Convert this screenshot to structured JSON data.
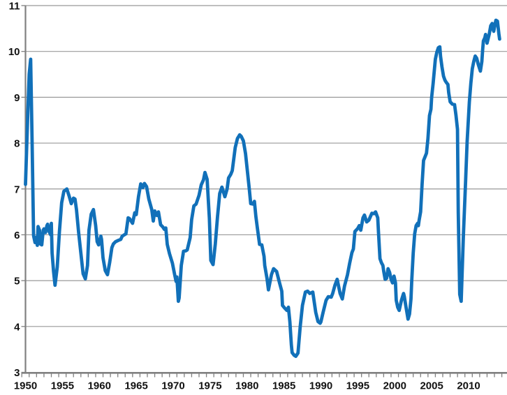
{
  "chart_data": {
    "type": "line",
    "title": "",
    "xlabel": "",
    "ylabel": "",
    "xlim": [
      1950,
      2015.2
    ],
    "ylim": [
      3,
      11
    ],
    "grid": "horizontal",
    "legend": "none",
    "colors": {
      "line": "#1170B9",
      "gridline": "#999999",
      "axis": "#808080",
      "tick": "#808080",
      "label": "#111111",
      "background": "#ffffff"
    },
    "line_width": 4.8,
    "y_ticks": [
      3,
      4,
      5,
      6,
      7,
      8,
      9,
      10,
      11
    ],
    "y_tick_labels": [
      "3",
      "4",
      "5",
      "6",
      "7",
      "8",
      "9",
      "10",
      "11"
    ],
    "x_tick_labels": [
      "1950",
      "1955",
      "1960",
      "1965",
      "1970",
      "1975",
      "1980",
      "1985",
      "1990",
      "1995",
      "2000",
      "2005",
      "2010"
    ],
    "x_minor_ticks": {
      "start": 1949.5,
      "step": 1,
      "end": 2015.5
    },
    "series": [
      {
        "name": "series-1",
        "color": "#1170B9",
        "points": [
          [
            1950.0,
            7.1
          ],
          [
            1950.3,
            8.6
          ],
          [
            1950.5,
            9.5
          ],
          [
            1950.7,
            9.83
          ],
          [
            1950.9,
            8.0
          ],
          [
            1951.1,
            5.98
          ],
          [
            1951.3,
            5.83
          ],
          [
            1951.5,
            5.95
          ],
          [
            1951.6,
            5.77
          ],
          [
            1951.7,
            6.18
          ],
          [
            1951.9,
            6.1
          ],
          [
            1952.0,
            5.8
          ],
          [
            1952.2,
            5.78
          ],
          [
            1952.4,
            6.1
          ],
          [
            1952.5,
            6.13
          ],
          [
            1952.7,
            6.05
          ],
          [
            1952.9,
            6.2
          ],
          [
            1953.0,
            6.23
          ],
          [
            1953.2,
            6.07
          ],
          [
            1953.4,
            6.0
          ],
          [
            1953.5,
            6.25
          ],
          [
            1953.6,
            5.6
          ],
          [
            1953.8,
            5.2
          ],
          [
            1954.0,
            4.9
          ],
          [
            1954.3,
            5.3
          ],
          [
            1954.6,
            6.07
          ],
          [
            1954.9,
            6.7
          ],
          [
            1955.2,
            6.95
          ],
          [
            1955.6,
            7.0
          ],
          [
            1955.9,
            6.85
          ],
          [
            1956.2,
            6.68
          ],
          [
            1956.5,
            6.8
          ],
          [
            1956.7,
            6.78
          ],
          [
            1956.9,
            6.55
          ],
          [
            1957.2,
            6.05
          ],
          [
            1957.5,
            5.6
          ],
          [
            1957.8,
            5.15
          ],
          [
            1958.1,
            5.04
          ],
          [
            1958.4,
            5.33
          ],
          [
            1958.6,
            6.1
          ],
          [
            1958.9,
            6.45
          ],
          [
            1959.2,
            6.55
          ],
          [
            1959.5,
            6.2
          ],
          [
            1959.7,
            5.85
          ],
          [
            1959.9,
            5.78
          ],
          [
            1960.2,
            5.97
          ],
          [
            1960.3,
            5.9
          ],
          [
            1960.5,
            5.5
          ],
          [
            1960.8,
            5.22
          ],
          [
            1961.1,
            5.13
          ],
          [
            1961.4,
            5.4
          ],
          [
            1961.7,
            5.72
          ],
          [
            1961.9,
            5.8
          ],
          [
            1962.2,
            5.85
          ],
          [
            1962.6,
            5.88
          ],
          [
            1962.9,
            5.9
          ],
          [
            1963.1,
            5.97
          ],
          [
            1963.4,
            6.0
          ],
          [
            1963.6,
            6.02
          ],
          [
            1963.9,
            6.37
          ],
          [
            1964.1,
            6.35
          ],
          [
            1964.5,
            6.25
          ],
          [
            1964.8,
            6.48
          ],
          [
            1965.0,
            6.44
          ],
          [
            1965.3,
            6.83
          ],
          [
            1965.6,
            7.11
          ],
          [
            1965.9,
            7.03
          ],
          [
            1966.1,
            7.12
          ],
          [
            1966.4,
            7.05
          ],
          [
            1966.7,
            6.78
          ],
          [
            1967.1,
            6.55
          ],
          [
            1967.3,
            6.3
          ],
          [
            1967.5,
            6.52
          ],
          [
            1967.8,
            6.42
          ],
          [
            1968.0,
            6.5
          ],
          [
            1968.3,
            6.22
          ],
          [
            1968.6,
            6.17
          ],
          [
            1968.8,
            6.12
          ],
          [
            1969.0,
            6.15
          ],
          [
            1969.2,
            5.79
          ],
          [
            1969.5,
            5.59
          ],
          [
            1969.9,
            5.38
          ],
          [
            1970.2,
            5.13
          ],
          [
            1970.4,
            4.98
          ],
          [
            1970.5,
            5.08
          ],
          [
            1970.7,
            4.55
          ],
          [
            1970.8,
            4.62
          ],
          [
            1971.1,
            5.33
          ],
          [
            1971.4,
            5.64
          ],
          [
            1971.7,
            5.65
          ],
          [
            1971.9,
            5.67
          ],
          [
            1972.3,
            5.94
          ],
          [
            1972.5,
            6.33
          ],
          [
            1972.8,
            6.63
          ],
          [
            1973.1,
            6.67
          ],
          [
            1973.5,
            6.86
          ],
          [
            1973.8,
            7.09
          ],
          [
            1974.1,
            7.2
          ],
          [
            1974.3,
            7.36
          ],
          [
            1974.6,
            7.21
          ],
          [
            1974.9,
            6.36
          ],
          [
            1975.1,
            5.44
          ],
          [
            1975.4,
            5.35
          ],
          [
            1975.7,
            5.8
          ],
          [
            1976.0,
            6.4
          ],
          [
            1976.3,
            6.9
          ],
          [
            1976.6,
            7.04
          ],
          [
            1976.9,
            6.88
          ],
          [
            1977.0,
            6.83
          ],
          [
            1977.3,
            7.0
          ],
          [
            1977.5,
            7.24
          ],
          [
            1977.8,
            7.32
          ],
          [
            1978.0,
            7.4
          ],
          [
            1978.2,
            7.65
          ],
          [
            1978.4,
            7.9
          ],
          [
            1978.7,
            8.1
          ],
          [
            1979.0,
            8.18
          ],
          [
            1979.2,
            8.15
          ],
          [
            1979.5,
            8.05
          ],
          [
            1979.8,
            7.77
          ],
          [
            1980.1,
            7.31
          ],
          [
            1980.3,
            7.01
          ],
          [
            1980.5,
            6.68
          ],
          [
            1980.8,
            6.67
          ],
          [
            1981.0,
            6.73
          ],
          [
            1981.2,
            6.4
          ],
          [
            1981.4,
            6.14
          ],
          [
            1981.7,
            5.79
          ],
          [
            1982.0,
            5.78
          ],
          [
            1982.3,
            5.53
          ],
          [
            1982.4,
            5.33
          ],
          [
            1982.7,
            5.05
          ],
          [
            1982.9,
            4.8
          ],
          [
            1983.3,
            5.13
          ],
          [
            1983.6,
            5.26
          ],
          [
            1984.0,
            5.2
          ],
          [
            1984.4,
            4.95
          ],
          [
            1984.7,
            4.77
          ],
          [
            1984.8,
            4.46
          ],
          [
            1985.1,
            4.4
          ],
          [
            1985.4,
            4.35
          ],
          [
            1985.6,
            4.42
          ],
          [
            1985.8,
            4.1
          ],
          [
            1986.0,
            3.6
          ],
          [
            1986.1,
            3.43
          ],
          [
            1986.4,
            3.37
          ],
          [
            1986.6,
            3.35
          ],
          [
            1986.9,
            3.42
          ],
          [
            1987.2,
            4.0
          ],
          [
            1987.5,
            4.46
          ],
          [
            1987.9,
            4.75
          ],
          [
            1988.2,
            4.77
          ],
          [
            1988.5,
            4.72
          ],
          [
            1988.9,
            4.75
          ],
          [
            1989.3,
            4.31
          ],
          [
            1989.6,
            4.11
          ],
          [
            1989.9,
            4.07
          ],
          [
            1990.0,
            4.1
          ],
          [
            1990.3,
            4.31
          ],
          [
            1990.7,
            4.57
          ],
          [
            1991.0,
            4.65
          ],
          [
            1991.4,
            4.64
          ],
          [
            1991.6,
            4.72
          ],
          [
            1991.9,
            4.9
          ],
          [
            1992.2,
            5.03
          ],
          [
            1992.6,
            4.72
          ],
          [
            1992.9,
            4.6
          ],
          [
            1993.2,
            4.88
          ],
          [
            1993.6,
            5.13
          ],
          [
            1993.9,
            5.38
          ],
          [
            1994.2,
            5.61
          ],
          [
            1994.4,
            5.69
          ],
          [
            1994.6,
            6.07
          ],
          [
            1995.0,
            6.14
          ],
          [
            1995.2,
            6.2
          ],
          [
            1995.4,
            6.1
          ],
          [
            1995.7,
            6.37
          ],
          [
            1995.9,
            6.43
          ],
          [
            1996.2,
            6.28
          ],
          [
            1996.5,
            6.32
          ],
          [
            1996.9,
            6.47
          ],
          [
            1997.2,
            6.46
          ],
          [
            1997.4,
            6.5
          ],
          [
            1997.7,
            6.37
          ],
          [
            1997.8,
            6.05
          ],
          [
            1998.0,
            5.48
          ],
          [
            1998.2,
            5.39
          ],
          [
            1998.4,
            5.33
          ],
          [
            1998.5,
            5.21
          ],
          [
            1998.7,
            5.03
          ],
          [
            1998.9,
            5.05
          ],
          [
            1999.1,
            5.26
          ],
          [
            1999.3,
            5.18
          ],
          [
            1999.5,
            5.03
          ],
          [
            1999.7,
            4.95
          ],
          [
            1999.9,
            5.1
          ],
          [
            2000.1,
            4.95
          ],
          [
            2000.2,
            4.57
          ],
          [
            2000.4,
            4.42
          ],
          [
            2000.6,
            4.35
          ],
          [
            2000.9,
            4.57
          ],
          [
            2001.2,
            4.72
          ],
          [
            2001.3,
            4.65
          ],
          [
            2001.5,
            4.45
          ],
          [
            2001.8,
            4.16
          ],
          [
            2002.0,
            4.27
          ],
          [
            2002.2,
            4.6
          ],
          [
            2002.3,
            5.0
          ],
          [
            2002.5,
            5.6
          ],
          [
            2002.7,
            6.02
          ],
          [
            2002.9,
            6.2
          ],
          [
            2003.1,
            6.25
          ],
          [
            2003.2,
            6.2
          ],
          [
            2003.3,
            6.32
          ],
          [
            2003.5,
            6.5
          ],
          [
            2003.7,
            7.1
          ],
          [
            2003.9,
            7.62
          ],
          [
            2004.1,
            7.7
          ],
          [
            2004.3,
            7.78
          ],
          [
            2004.5,
            8.1
          ],
          [
            2004.7,
            8.6
          ],
          [
            2004.9,
            8.74
          ],
          [
            2005.0,
            9.0
          ],
          [
            2005.2,
            9.3
          ],
          [
            2005.5,
            9.83
          ],
          [
            2005.7,
            9.98
          ],
          [
            2005.9,
            10.08
          ],
          [
            2006.1,
            10.1
          ],
          [
            2006.2,
            9.9
          ],
          [
            2006.4,
            9.66
          ],
          [
            2006.6,
            9.46
          ],
          [
            2006.8,
            9.37
          ],
          [
            2007.0,
            9.32
          ],
          [
            2007.2,
            9.28
          ],
          [
            2007.3,
            9.1
          ],
          [
            2007.5,
            8.9
          ],
          [
            2007.8,
            8.85
          ],
          [
            2008.1,
            8.84
          ],
          [
            2008.3,
            8.6
          ],
          [
            2008.5,
            8.3
          ],
          [
            2008.6,
            6.5
          ],
          [
            2008.8,
            4.7
          ],
          [
            2009.0,
            4.55
          ],
          [
            2009.3,
            6.0
          ],
          [
            2009.6,
            7.2
          ],
          [
            2009.8,
            8.03
          ],
          [
            2010.1,
            8.9
          ],
          [
            2010.3,
            9.3
          ],
          [
            2010.5,
            9.62
          ],
          [
            2010.7,
            9.78
          ],
          [
            2010.9,
            9.9
          ],
          [
            2011.1,
            9.85
          ],
          [
            2011.3,
            9.72
          ],
          [
            2011.6,
            9.57
          ],
          [
            2011.8,
            9.78
          ],
          [
            2011.9,
            10.03
          ],
          [
            2012.0,
            10.23
          ],
          [
            2012.2,
            10.3
          ],
          [
            2012.3,
            10.37
          ],
          [
            2012.5,
            10.18
          ],
          [
            2012.8,
            10.38
          ],
          [
            2013.0,
            10.56
          ],
          [
            2013.2,
            10.61
          ],
          [
            2013.3,
            10.49
          ],
          [
            2013.4,
            10.44
          ],
          [
            2013.6,
            10.61
          ],
          [
            2013.7,
            10.68
          ],
          [
            2013.9,
            10.66
          ],
          [
            2014.1,
            10.38
          ],
          [
            2014.2,
            10.27
          ]
        ]
      }
    ]
  }
}
